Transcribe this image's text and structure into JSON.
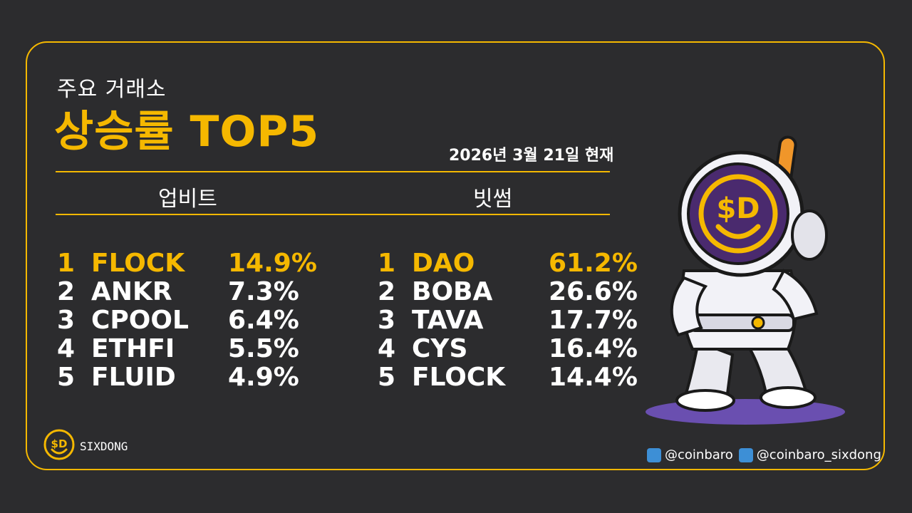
{
  "header": {
    "subtitle": "주요 거래소",
    "title": "상승률 TOP5",
    "date": "2026년 3월 21일 현재"
  },
  "exchanges": [
    {
      "name": "업비트",
      "rows": [
        {
          "rank": "1",
          "symbol": "FLOCK",
          "change": "14.9%"
        },
        {
          "rank": "2",
          "symbol": "ANKR",
          "change": "7.3%"
        },
        {
          "rank": "3",
          "symbol": "CPOOL",
          "change": "6.4%"
        },
        {
          "rank": "4",
          "symbol": "ETHFI",
          "change": "5.5%"
        },
        {
          "rank": "5",
          "symbol": "FLUID",
          "change": "4.9%"
        }
      ]
    },
    {
      "name": "빗썸",
      "rows": [
        {
          "rank": "1",
          "symbol": "DAO",
          "change": "61.2%"
        },
        {
          "rank": "2",
          "symbol": "BOBA",
          "change": "26.6%"
        },
        {
          "rank": "3",
          "symbol": "TAVA",
          "change": "17.7%"
        },
        {
          "rank": "4",
          "symbol": "CYS",
          "change": "16.4%"
        },
        {
          "rank": "5",
          "symbol": "FLOCK",
          "change": "14.4%"
        }
      ]
    }
  ],
  "brand": {
    "logo_text": "SIXDONG",
    "logo_mark": "$D"
  },
  "social": {
    "twitter": "@coinbaro",
    "telegram": "@coinbaro_sixdong"
  },
  "icons": {
    "twitter": "twitter-icon",
    "telegram": "telegram-icon",
    "logo": "sixdong-logo-icon",
    "mascot": "astronaut-mascot"
  },
  "colors": {
    "background": "#2c2c2e",
    "accent": "#f5b800",
    "text": "#ffffff",
    "mascot_visor": "#4a2a6e",
    "shadow": "#6a4fb0"
  }
}
